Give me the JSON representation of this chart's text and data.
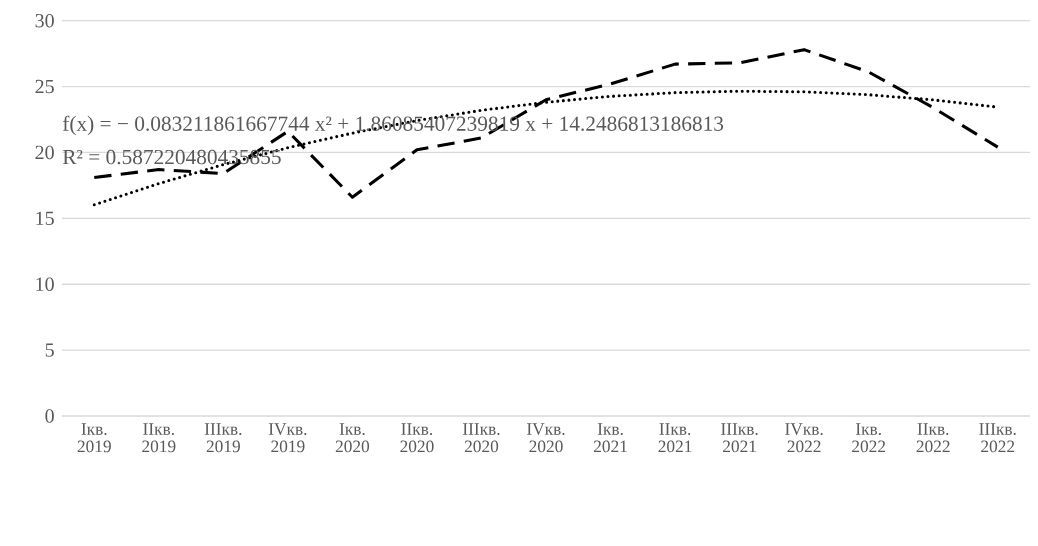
{
  "chart_data": {
    "type": "line",
    "categories": [
      "Iкв. 2019",
      "IIкв. 2019",
      "IIIкв. 2019",
      "IVкв. 2019",
      "Iкв. 2020",
      "IIкв. 2020",
      "IIIкв. 2020",
      "IVкв. 2020",
      "Iкв. 2021",
      "IIкв. 2021",
      "IIIкв. 2021",
      "IVкв. 2022",
      "Iкв. 2022",
      "IIкв. 2022",
      "IIIкв. 2022"
    ],
    "series": [
      {
        "color": "#000000",
        "line_style": "dashed",
        "values": [
          18.1,
          18.7,
          18.4,
          21.6,
          16.6,
          20.2,
          21.1,
          24.0,
          25.2,
          26.7,
          26.8,
          27.8,
          26.1,
          23.4,
          20.4
        ]
      },
      {
        "color": "#000000",
        "line_style": "dotted",
        "values": [
          16.03,
          17.64,
          19.08,
          20.36,
          21.47,
          22.42,
          23.2,
          23.81,
          24.26,
          24.54,
          24.65,
          24.6,
          24.38,
          23.99,
          23.44
        ]
      }
    ],
    "ylim": [
      0,
      30
    ],
    "yticks": [
      0,
      5,
      10,
      15,
      20,
      25,
      30
    ],
    "grid": "y",
    "annotations": [
      "f(x) = − 0.083211861667744 x² + 1.86085407239819 x + 14.2486813186813",
      "R² = 0.587220480435855"
    ]
  }
}
